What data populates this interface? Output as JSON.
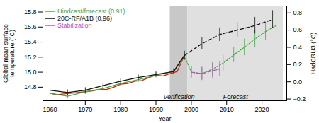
{
  "chart_data": {
    "type": "line",
    "xlabel": "Year",
    "ylabel": "Global mean surface\ntemperature (°C)",
    "y2label": "HadCRU3 (°C)",
    "xlim": [
      1958,
      2027
    ],
    "xticks": [
      1960,
      1970,
      1980,
      1990,
      2000,
      2010,
      2020
    ],
    "ylim": [
      14.62,
      15.88
    ],
    "yticks": [
      14.8,
      {
        "value": 15.0,
        "label": "15.0"
      },
      15.2,
      15.4,
      15.6,
      15.8
    ],
    "y2lim": [
      -0.22,
      0.88
    ],
    "y2ticks": [
      {
        "value": -0.2,
        "label": "−0.2"
      },
      {
        "value": 0.0,
        "label": "0.0"
      },
      0.2,
      0.4,
      0.6,
      0.8
    ],
    "legend": "upper left",
    "spans": [
      {
        "label": "Verification",
        "start": 1994,
        "end": 1999,
        "color": "#c8c8c8"
      },
      {
        "label": "Forecast",
        "start": 1999,
        "end": 2026,
        "color": "#e0e0e0"
      }
    ],
    "series": [
      {
        "color": "#cc2200",
        "line_style": "solid",
        "x": [
          1960,
          1962,
          1964,
          1966,
          1968,
          1970,
          1972,
          1974,
          1976,
          1978,
          1980,
          1982,
          1984,
          1986,
          1988,
          1990,
          1992,
          1994,
          1996,
          1998
        ],
        "values": [
          14.72,
          14.7,
          14.71,
          14.72,
          14.73,
          14.74,
          14.75,
          14.77,
          14.77,
          14.8,
          14.84,
          14.85,
          14.88,
          14.89,
          14.93,
          14.96,
          14.95,
          14.98,
          15.01,
          15.22
        ]
      },
      {
        "name": "Hindcast/forecast (0.91)",
        "color": "#44aa44",
        "line_style": "solid",
        "x": [
          1960,
          1965,
          1970,
          1975,
          1980,
          1985,
          1990,
          1995,
          1998
        ],
        "values": [
          14.72,
          14.68,
          14.74,
          14.78,
          14.85,
          14.9,
          14.96,
          15.01,
          15.22
        ],
        "errors": [
          0.035,
          0.035,
          0.035,
          0.035,
          0.035,
          0.035,
          0.035,
          0.035,
          0.06
        ]
      },
      {
        "name": "Hindcast/forecast (0.91)",
        "color": "#44aa44",
        "line_style": "dotted",
        "x": [
          1998,
          2000,
          2003,
          2006,
          2009,
          2012,
          2015,
          2018,
          2021,
          2024
        ],
        "values": [
          15.22,
          15.0,
          14.98,
          15.04,
          15.12,
          15.23,
          15.33,
          15.44,
          15.54,
          15.62
        ],
        "errors": [
          0.06,
          0.07,
          0.08,
          0.09,
          0.1,
          0.1,
          0.11,
          0.11,
          0.12,
          0.12
        ]
      },
      {
        "name": "20C-RF/A1B (0.96)",
        "color": "#111111",
        "line_style": "solid",
        "x": [
          1960,
          1965,
          1970,
          1975,
          1980,
          1985,
          1990,
          1995,
          1998
        ],
        "values": [
          14.76,
          14.73,
          14.76,
          14.82,
          14.88,
          14.93,
          14.97,
          15.01,
          15.22
        ],
        "errors": [
          0.035,
          0.035,
          0.035,
          0.035,
          0.035,
          0.035,
          0.035,
          0.035,
          0.06
        ]
      },
      {
        "name": "20C-RF/A1B (0.96)",
        "color": "#111111",
        "line_style": "dashed",
        "x": [
          1998,
          2003,
          2008,
          2013,
          2018,
          2023
        ],
        "values": [
          15.22,
          15.38,
          15.5,
          15.56,
          15.62,
          15.7
        ],
        "errors": [
          0.06,
          0.08,
          0.09,
          0.1,
          0.11,
          0.12
        ]
      },
      {
        "name": "Stabilization",
        "color": "#bb55bb",
        "line_style": "dashed",
        "x": [
          2000,
          2003,
          2006,
          2008
        ],
        "values": [
          15.0,
          14.98,
          15.02,
          15.04
        ],
        "errors": [
          0.08,
          0.09,
          0.1,
          0.1
        ]
      }
    ]
  }
}
